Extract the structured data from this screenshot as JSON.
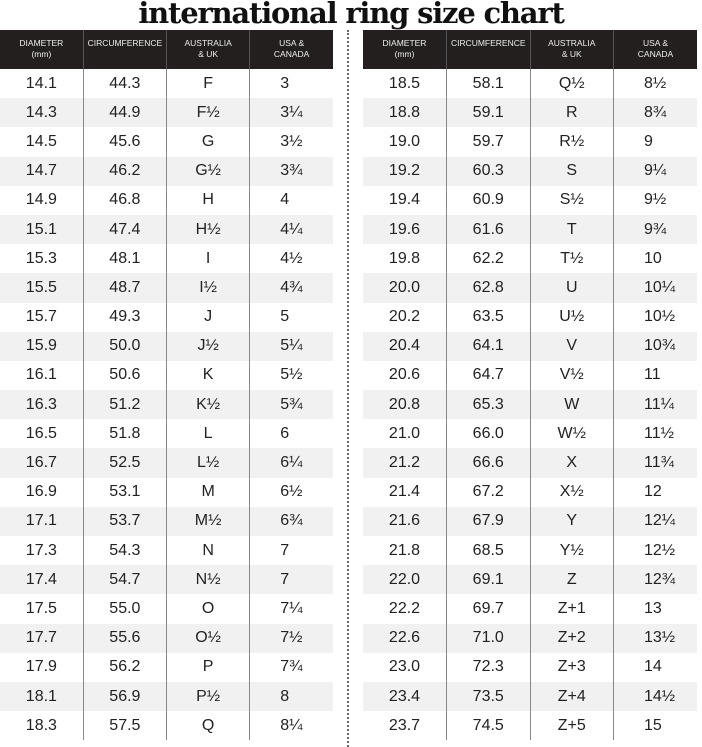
{
  "title": "international ring size chart",
  "headers": [
    "DIAMETER\n(mm)",
    "CIRCUMFERENCE",
    "AUSTRALIA\n& UK",
    "USA &\nCANADA"
  ],
  "left_rows": [
    [
      "14.1",
      "44.3",
      "F",
      "3"
    ],
    [
      "14.3",
      "44.9",
      "F½",
      "3¼"
    ],
    [
      "14.5",
      "45.6",
      "G",
      "3½"
    ],
    [
      "14.7",
      "46.2",
      "G½",
      "3¾"
    ],
    [
      "14.9",
      "46.8",
      "H",
      "4"
    ],
    [
      "15.1",
      "47.4",
      "H½",
      "4¼"
    ],
    [
      "15.3",
      "48.1",
      "I",
      "4½"
    ],
    [
      "15.5",
      "48.7",
      "I½",
      "4¾"
    ],
    [
      "15.7",
      "49.3",
      "J",
      "5"
    ],
    [
      "15.9",
      "50.0",
      "J½",
      "5¼"
    ],
    [
      "16.1",
      "50.6",
      "K",
      "5½"
    ],
    [
      "16.3",
      "51.2",
      "K½",
      "5¾"
    ],
    [
      "16.5",
      "51.8",
      "L",
      "6"
    ],
    [
      "16.7",
      "52.5",
      "L½",
      "6¼"
    ],
    [
      "16.9",
      "53.1",
      "M",
      "6½"
    ],
    [
      "17.1",
      "53.7",
      "M½",
      "6¾"
    ],
    [
      "17.3",
      "54.3",
      "N",
      "7"
    ],
    [
      "17.4",
      "54.7",
      "N½",
      "7"
    ],
    [
      "17.5",
      "55.0",
      "O",
      "7¼"
    ],
    [
      "17.7",
      "55.6",
      "O½",
      "7½"
    ],
    [
      "17.9",
      "56.2",
      "P",
      "7¾"
    ],
    [
      "18.1",
      "56.9",
      "P½",
      "8"
    ],
    [
      "18.3",
      "57.5",
      "Q",
      "8¼"
    ]
  ],
  "right_rows": [
    [
      "18.5",
      "58.1",
      "Q½",
      "8½"
    ],
    [
      "18.8",
      "59.1",
      "R",
      "8¾"
    ],
    [
      "19.0",
      "59.7",
      "R½",
      "9"
    ],
    [
      "19.2",
      "60.3",
      "S",
      "9¼"
    ],
    [
      "19.4",
      "60.9",
      "S½",
      "9½"
    ],
    [
      "19.6",
      "61.6",
      "T",
      "9¾"
    ],
    [
      "19.8",
      "62.2",
      "T½",
      "10"
    ],
    [
      "20.0",
      "62.8",
      "U",
      "10¼"
    ],
    [
      "20.2",
      "63.5",
      "U½",
      "10½"
    ],
    [
      "20.4",
      "64.1",
      "V",
      "10¾"
    ],
    [
      "20.6",
      "64.7",
      "V½",
      "11"
    ],
    [
      "20.8",
      "65.3",
      "W",
      "11¼"
    ],
    [
      "21.0",
      "66.0",
      "W½",
      "11½"
    ],
    [
      "21.2",
      "66.6",
      "X",
      "11¾"
    ],
    [
      "21.4",
      "67.2",
      "X½",
      "12"
    ],
    [
      "21.6",
      "67.9",
      "Y",
      "12¼"
    ],
    [
      "21.8",
      "68.5",
      "Y½",
      "12½"
    ],
    [
      "22.0",
      "69.1",
      "Z",
      "12¾"
    ],
    [
      "22.2",
      "69.7",
      "Z+1",
      "13"
    ],
    [
      "22.6",
      "71.0",
      "Z+2",
      "13½"
    ],
    [
      "23.0",
      "72.3",
      "Z+3",
      "14"
    ],
    [
      "23.4",
      "73.5",
      "Z+4",
      "14½"
    ],
    [
      "23.7",
      "74.5",
      "Z+5",
      "15"
    ]
  ],
  "colors": {
    "header_bg": "#231f1e",
    "stripe": "#f1f1f1"
  }
}
